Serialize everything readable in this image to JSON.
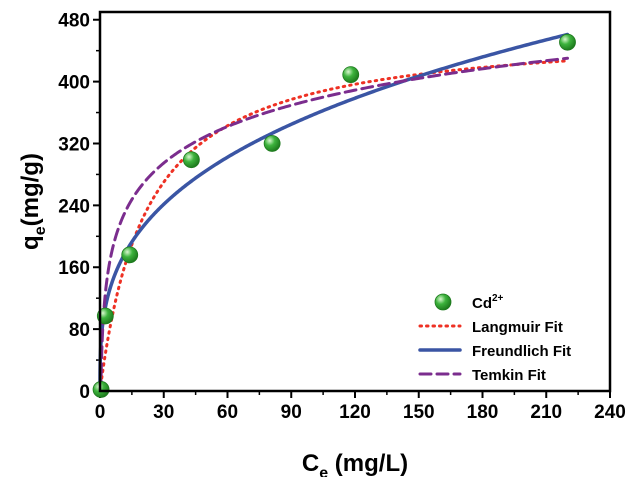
{
  "chart_data": {
    "type": "scatter",
    "x_axis": {
      "label_main": "C",
      "label_sub": "e",
      "label_rest": " (mg/L)",
      "range": [
        0,
        240
      ],
      "ticks": [
        0,
        30,
        60,
        90,
        120,
        150,
        180,
        210,
        240
      ]
    },
    "y_axis": {
      "label_main": "q",
      "label_sub": "e",
      "label_rest": "(mg/g)",
      "range": [
        0,
        490
      ],
      "ticks": [
        0,
        80,
        160,
        240,
        320,
        400,
        480
      ]
    },
    "grid": false,
    "legend_position": "bottom-right",
    "series": [
      {
        "name": "Cd",
        "name_sup": "2+",
        "type": "scatter",
        "color": "#3db33d",
        "points": [
          [
            0.5,
            2
          ],
          [
            2.5,
            97
          ],
          [
            14,
            176
          ],
          [
            43,
            299
          ],
          [
            81,
            320
          ],
          [
            118,
            409
          ],
          [
            220,
            451
          ]
        ]
      },
      {
        "name": "Langmuir Fit",
        "type": "line",
        "style": "dotted",
        "color": "#ee3124",
        "model": "langmuir",
        "params": {
          "qm": 470,
          "K": 0.045
        },
        "x_range": [
          0,
          220
        ]
      },
      {
        "name": "Freundlich Fit",
        "type": "line",
        "style": "solid",
        "color": "#3a55a4",
        "model": "freundlich",
        "params": {
          "Kf": 80,
          "n": 3.08
        },
        "x_range": [
          0,
          220
        ]
      },
      {
        "name": "Temkin Fit",
        "type": "line",
        "style": "dashed",
        "color": "#7b2d8e",
        "model": "temkin",
        "params": {
          "B": 68,
          "lnKt": 0.933
        },
        "x_range": [
          0,
          220
        ]
      }
    ]
  }
}
